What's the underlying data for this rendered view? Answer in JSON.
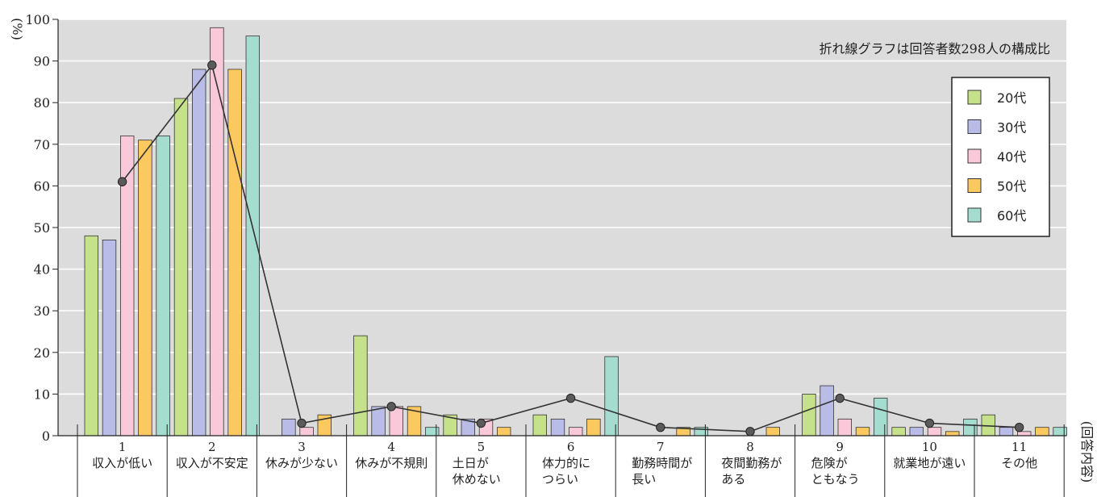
{
  "chart_data": {
    "type": "bar",
    "y_unit": "(%)",
    "x_unit": "(回答内容)",
    "ylim": [
      0,
      100
    ],
    "y_ticks": [
      0,
      10,
      20,
      30,
      40,
      50,
      60,
      70,
      80,
      90,
      100
    ],
    "grid": true,
    "legend_position": "top-right",
    "note": "折れ線グラフは回答者数298人の構成比",
    "categories": [
      {
        "num": "1",
        "lines": [
          "収入が低い"
        ]
      },
      {
        "num": "2",
        "lines": [
          "収入が不安定"
        ]
      },
      {
        "num": "3",
        "lines": [
          "休みが少ない"
        ]
      },
      {
        "num": "4",
        "lines": [
          "休みが不規則"
        ]
      },
      {
        "num": "5",
        "lines": [
          "土日が",
          "休めない"
        ]
      },
      {
        "num": "6",
        "lines": [
          "体力的に",
          "つらい"
        ]
      },
      {
        "num": "7",
        "lines": [
          "勤務時間が",
          "長い"
        ]
      },
      {
        "num": "8",
        "lines": [
          "夜間勤務が",
          "ある"
        ]
      },
      {
        "num": "9",
        "lines": [
          "危険が",
          "ともなう"
        ]
      },
      {
        "num": "10",
        "lines": [
          "就業地が遠い"
        ]
      },
      {
        "num": "11",
        "lines": [
          "その他"
        ]
      }
    ],
    "series": [
      {
        "name": "20代",
        "color": "#c5e28a",
        "values": [
          48,
          81,
          0,
          24,
          5,
          5,
          0,
          0,
          10,
          2,
          5
        ]
      },
      {
        "name": "30代",
        "color": "#b9bce6",
        "values": [
          47,
          88,
          4,
          7,
          4,
          4,
          0,
          0,
          12,
          2,
          2
        ]
      },
      {
        "name": "40代",
        "color": "#f9c9d9",
        "values": [
          72,
          98,
          2,
          7,
          4,
          2,
          0,
          0,
          4,
          2,
          1
        ]
      },
      {
        "name": "50代",
        "color": "#fcc960",
        "values": [
          71,
          88,
          5,
          7,
          2,
          4,
          2,
          2,
          2,
          1,
          2
        ]
      },
      {
        "name": "60代",
        "color": "#a5dcd0",
        "values": [
          72,
          96,
          0,
          2,
          0,
          19,
          2,
          0,
          9,
          4,
          2
        ]
      }
    ],
    "line": {
      "color": "#333333",
      "values": [
        61,
        89,
        3,
        7,
        3,
        9,
        2,
        1,
        9,
        3,
        2
      ]
    }
  }
}
